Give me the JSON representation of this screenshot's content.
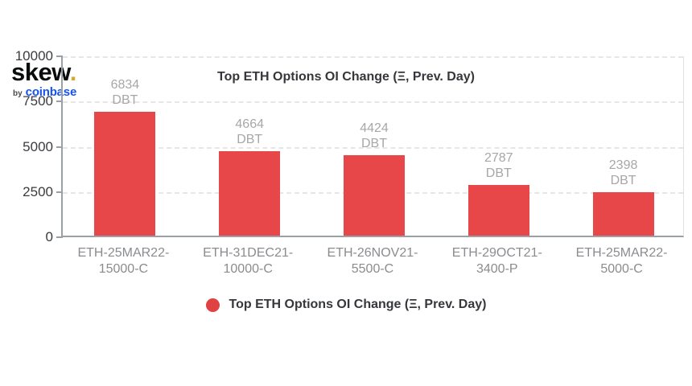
{
  "logo": {
    "brand": "skew",
    "dot": ".",
    "by": "by",
    "company": "coinbase",
    "brand_color": "#0b0c0e",
    "dot_color": "#d9a62e",
    "company_color": "#1652f0"
  },
  "chart_data": {
    "type": "bar",
    "title": "Top ETH Options OI Change (Ξ, Prev. Day)",
    "categories": [
      [
        "ETH-25MAR22-",
        "15000-C"
      ],
      [
        "ETH-31DEC21-",
        "10000-C"
      ],
      [
        "ETH-26NOV21-",
        "5500-C"
      ],
      [
        "ETH-29OCT21-",
        "3400-P"
      ],
      [
        "ETH-25MAR22-",
        "5000-C"
      ]
    ],
    "values": [
      6834,
      4664,
      4424,
      2787,
      2398
    ],
    "value_unit": "DBT",
    "yticks": [
      0,
      2500,
      5000,
      7500,
      10000
    ],
    "ylim": [
      0,
      10000
    ],
    "grid": "horizontal-dashed",
    "bar_color": "#e8474a",
    "value_label_color": "#a7a7a7",
    "axis_color": "#9aa0a6",
    "legend": {
      "label": "Top ETH Options OI Change (Ξ, Prev. Day)",
      "marker_color": "#e04143",
      "position": "bottom"
    }
  }
}
